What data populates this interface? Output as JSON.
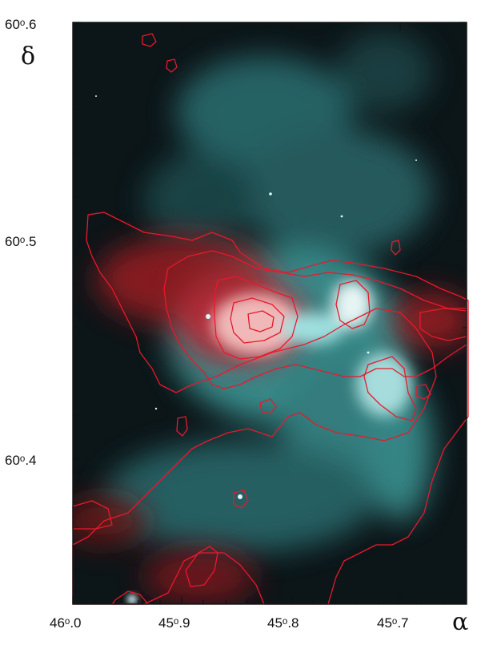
{
  "figure": {
    "y_axis_symbol": "δ",
    "x_axis_symbol": "α",
    "y_ticks": [
      {
        "value": 60.6,
        "label": "60ᵒ.6"
      },
      {
        "value": 60.5,
        "label": "60ᵒ.5"
      },
      {
        "value": 60.4,
        "label": "60ᵒ.4"
      }
    ],
    "x_ticks": [
      {
        "value": 46.0,
        "label": "46ᵒ.0"
      },
      {
        "value": 45.9,
        "label": "45ᵒ.9"
      },
      {
        "value": 45.8,
        "label": "45ᵒ.8"
      },
      {
        "value": 45.7,
        "label": "45ᵒ.7"
      }
    ],
    "colors": {
      "background": "#0c1518",
      "nebula_cyan": "#5fd3d1",
      "emission_red": "#e3202a",
      "contour": "#e8192c",
      "frame": "#111111"
    }
  }
}
